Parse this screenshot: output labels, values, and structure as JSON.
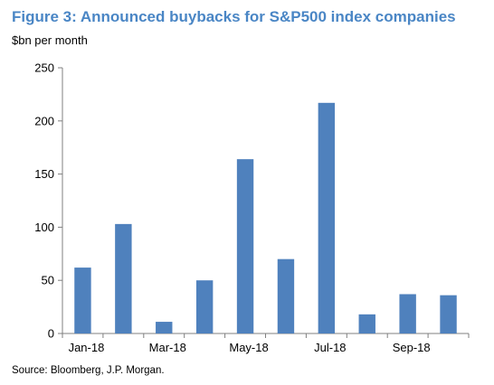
{
  "title": "Figure 3: Announced buybacks for S&P500 index companies",
  "subtitle": "$bn per month",
  "source": "Source: Bloomberg,  J.P. Morgan.",
  "colors": {
    "bar": "#4f81bd",
    "axis": "#7f7f7f",
    "title": "#4a86c5"
  },
  "chart_data": {
    "type": "bar",
    "categories": [
      "Jan-18",
      "Feb-18",
      "Mar-18",
      "Apr-18",
      "May-18",
      "Jun-18",
      "Jul-18",
      "Aug-18",
      "Sep-18",
      "Oct-18"
    ],
    "values": [
      62,
      103,
      11,
      50,
      164,
      70,
      217,
      18,
      37,
      36
    ],
    "x_tick_labels": [
      "Jan-18",
      "Mar-18",
      "May-18",
      "Jul-18",
      "Sep-18"
    ],
    "y_ticks": [
      0,
      50,
      100,
      150,
      200,
      250
    ],
    "ylim": [
      0,
      250
    ],
    "grid": false,
    "legend": "none"
  }
}
